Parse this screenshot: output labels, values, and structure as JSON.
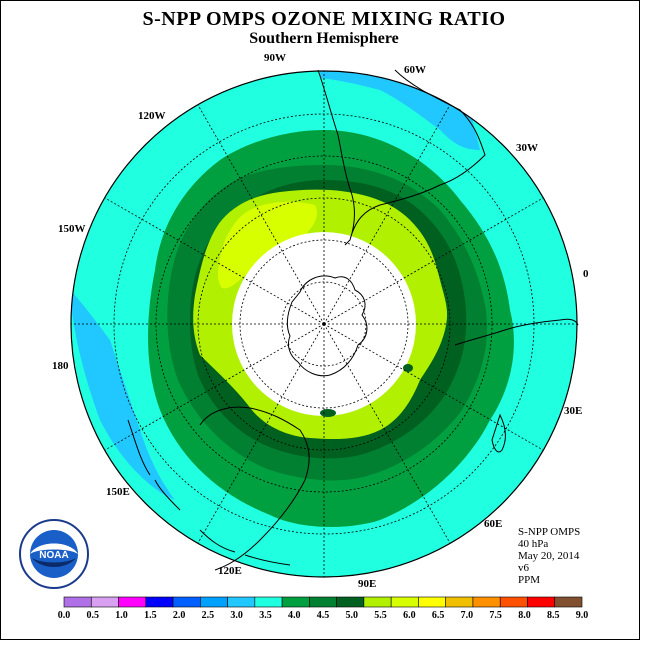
{
  "title": "S-NPP OMPS OZONE MIXING RATIO",
  "subtitle": "Southern Hemisphere",
  "longitude_labels": [
    "90W",
    "60W",
    "30W",
    "0",
    "30E",
    "60E",
    "90E",
    "120E",
    "150E",
    "180",
    "150W",
    "120W"
  ],
  "info": {
    "instrument": "S-NPP OMPS",
    "level": "40 hPa",
    "date": "May 20, 2014",
    "version": "v6",
    "units": "PPM"
  },
  "legend": {
    "ticks": [
      "0.0",
      "0.5",
      "1.0",
      "1.5",
      "2.0",
      "2.5",
      "3.0",
      "3.5",
      "4.0",
      "4.5",
      "5.0",
      "5.5",
      "6.0",
      "6.5",
      "7.0",
      "7.5",
      "8.0",
      "8.5",
      "9.0"
    ],
    "colors": [
      "#b070e8",
      "#d8a0f0",
      "#ff00ff",
      "#0000ff",
      "#0060ff",
      "#00a0ff",
      "#20c8ff",
      "#20ffe0",
      "#00a040",
      "#008030",
      "#006020",
      "#b0f000",
      "#d8ff00",
      "#ffff00",
      "#f0c000",
      "#ff9000",
      "#ff5000",
      "#ff0000",
      "#805030"
    ]
  },
  "logo_text": "NOAA",
  "colors": {
    "band_3_5": "#20ffe0",
    "band_3_0": "#20c8ff",
    "band_4_0": "#00a040",
    "band_4_5": "#008030",
    "band_5_0": "#006020",
    "band_5_5": "#b0f000",
    "band_6_0": "#d8ff00",
    "no_data": "#ffffff"
  }
}
